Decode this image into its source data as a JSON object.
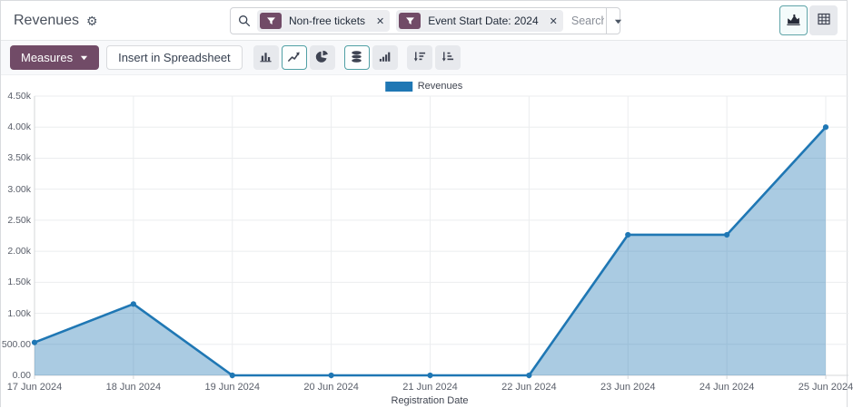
{
  "header": {
    "title": "Revenues",
    "search": {
      "placeholder": "Search...",
      "facets": [
        {
          "label": "Non-free tickets"
        },
        {
          "label": "Event Start Date: 2024"
        }
      ]
    },
    "view_switcher": [
      {
        "name": "graph",
        "active": true
      },
      {
        "name": "pivot",
        "active": false
      }
    ]
  },
  "toolbar": {
    "measures_label": "Measures",
    "insert_label": "Insert in Spreadsheet",
    "chart_buttons": [
      {
        "name": "bar-chart",
        "active": false
      },
      {
        "name": "line-chart",
        "active": true
      },
      {
        "name": "pie-chart",
        "active": false
      },
      {
        "name": "stacked",
        "active": true
      },
      {
        "name": "cumulative",
        "active": false
      },
      {
        "name": "sort-descending",
        "active": false
      },
      {
        "name": "sort-ascending",
        "active": false
      }
    ]
  },
  "chart_data": {
    "type": "area",
    "title": "",
    "legend": [
      "Revenues"
    ],
    "x": [
      "17 Jun 2024",
      "18 Jun 2024",
      "19 Jun 2024",
      "20 Jun 2024",
      "21 Jun 2024",
      "22 Jun 2024",
      "23 Jun 2024",
      "24 Jun 2024",
      "25 Jun 2024"
    ],
    "series": [
      {
        "name": "Revenues",
        "values": [
          530,
          1150,
          0,
          0,
          0,
          0,
          2265,
          2265,
          4000
        ]
      }
    ],
    "xlabel": "Registration Date",
    "ylabel": "",
    "ylim": [
      0,
      4500
    ],
    "yticks": [
      {
        "value": 0,
        "label": "0.00"
      },
      {
        "value": 500,
        "label": "500.00"
      },
      {
        "value": 1000,
        "label": "1.00k"
      },
      {
        "value": 1500,
        "label": "1.50k"
      },
      {
        "value": 2000,
        "label": "2.00k"
      },
      {
        "value": 2500,
        "label": "2.50k"
      },
      {
        "value": 3000,
        "label": "3.00k"
      },
      {
        "value": 3500,
        "label": "3.50k"
      },
      {
        "value": 4000,
        "label": "4.00k"
      },
      {
        "value": 4500,
        "label": "4.50k"
      }
    ],
    "grid": true,
    "legend_position": "top",
    "colors": {
      "line": "#1f77b4",
      "fill": "rgba(31,119,180,0.38)",
      "grid": "#ebedef",
      "axis": "#d4d7da"
    }
  },
  "colors": {
    "brand_purple": "#714B67",
    "accent_teal": "#51a0a5",
    "button_gray": "#e7e9ed"
  }
}
